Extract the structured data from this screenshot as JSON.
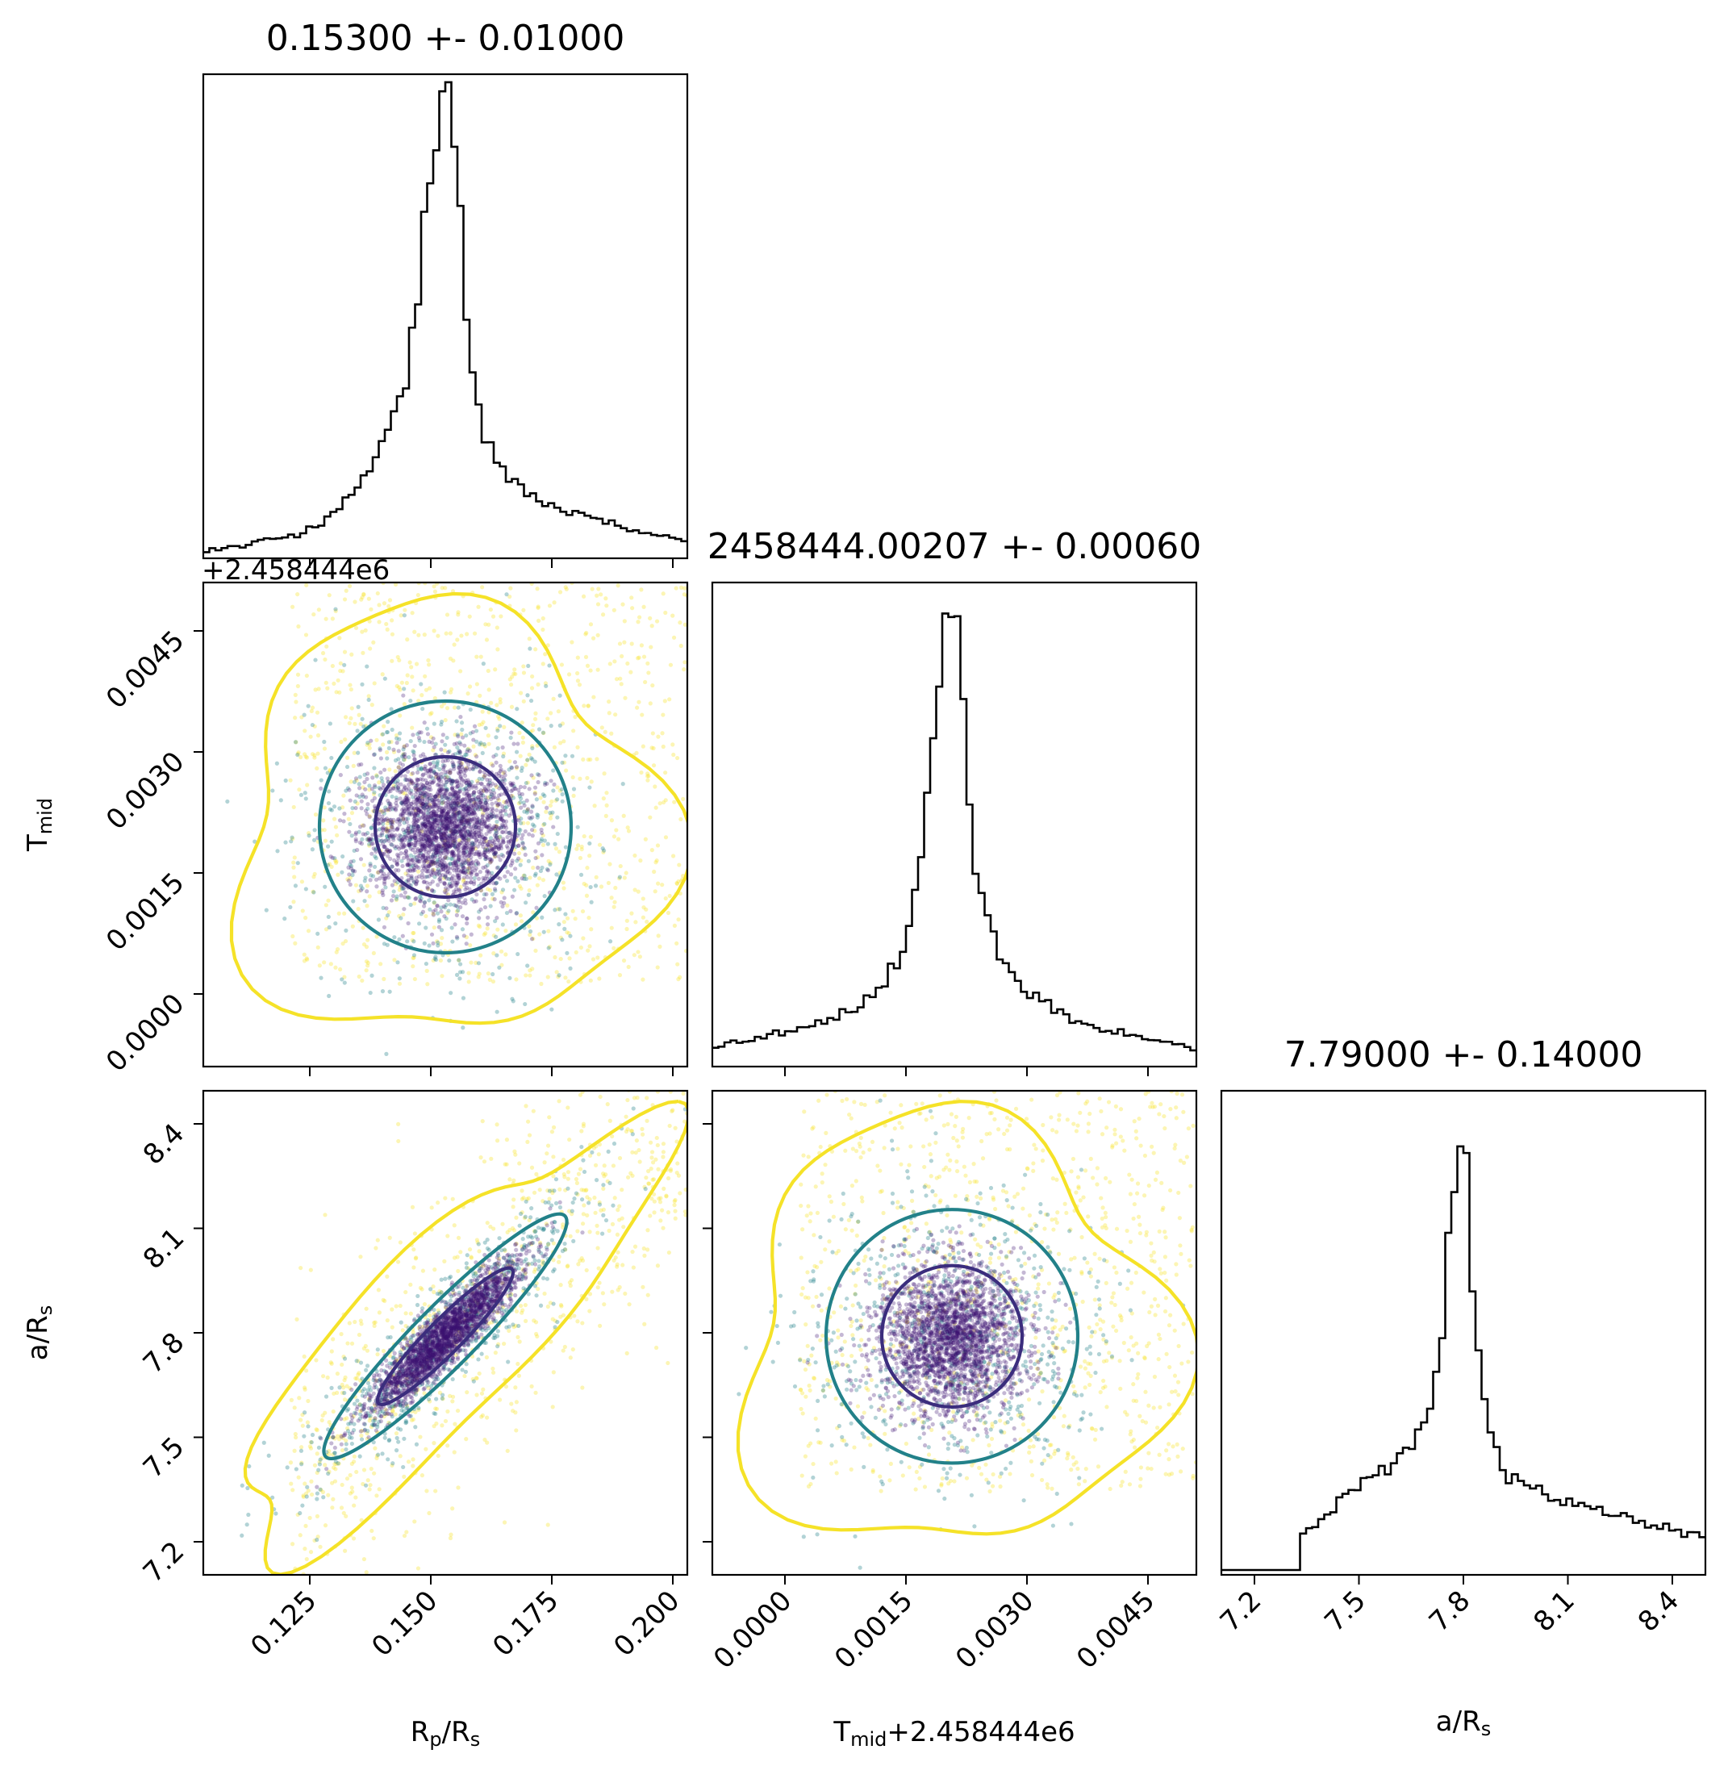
{
  "chart_data": {
    "type": "corner",
    "parameters": [
      {
        "key": "rprs",
        "label_main": "R",
        "label_sub": "p",
        "label_rest": "/R",
        "label_sub2": "s",
        "range": [
          0.103,
          0.203
        ],
        "ticks": [
          0.125,
          0.15,
          0.175,
          0.2
        ],
        "tick_labels": [
          "0.125",
          "0.150",
          "0.175",
          "0.200"
        ],
        "title": "0.15300 +- 0.01000",
        "center": 0.153,
        "sigma": 0.01
      },
      {
        "key": "tmid",
        "label_main": "T",
        "label_sub": "mid",
        "label_rest": "",
        "label_sub2": "",
        "offset_text": "+2.458444e6",
        "range": [
          -0.0009,
          0.0051
        ],
        "ticks": [
          0.0,
          0.0015,
          0.003,
          0.0045
        ],
        "tick_labels": [
          "0.0000",
          "0.0015",
          "0.0030",
          "0.0045"
        ],
        "title": "2458444.00207 +- 0.00060",
        "center": 0.00207,
        "sigma": 0.0006
      },
      {
        "key": "ars",
        "label_main": "a/R",
        "label_sub": "s",
        "label_rest": "",
        "label_sub2": "",
        "range": [
          7.105,
          8.495
        ],
        "ticks": [
          7.2,
          7.5,
          7.8,
          8.1,
          8.4
        ],
        "tick_labels": [
          "7.2",
          "7.5",
          "7.8",
          "8.1",
          "8.4"
        ],
        "title": "7.79000 +- 0.14000",
        "center": 7.79,
        "sigma": 0.14
      }
    ],
    "histograms": {
      "rprs": [
        [
          0.103,
          0.009
        ],
        [
          0.108,
          0.012
        ],
        [
          0.113,
          0.02
        ],
        [
          0.118,
          0.035
        ],
        [
          0.123,
          0.045
        ],
        [
          0.128,
          0.07
        ],
        [
          0.133,
          0.12
        ],
        [
          0.138,
          0.2
        ],
        [
          0.142,
          0.3
        ],
        [
          0.145,
          0.38
        ],
        [
          0.148,
          0.66
        ],
        [
          0.15,
          0.84
        ],
        [
          0.152,
          0.98
        ],
        [
          0.154,
          1.0
        ],
        [
          0.156,
          0.78
        ],
        [
          0.158,
          0.42
        ],
        [
          0.161,
          0.27
        ],
        [
          0.164,
          0.2
        ],
        [
          0.168,
          0.15
        ],
        [
          0.172,
          0.12
        ],
        [
          0.176,
          0.1
        ],
        [
          0.18,
          0.09
        ],
        [
          0.186,
          0.07
        ],
        [
          0.192,
          0.05
        ],
        [
          0.198,
          0.04
        ],
        [
          0.203,
          0.03
        ]
      ],
      "tmid": [
        [
          -0.0009,
          0.035
        ],
        [
          -0.0005,
          0.05
        ],
        [
          0.0,
          0.07
        ],
        [
          0.0005,
          0.09
        ],
        [
          0.0009,
          0.12
        ],
        [
          0.0012,
          0.17
        ],
        [
          0.0015,
          0.25
        ],
        [
          0.0017,
          0.45
        ],
        [
          0.0019,
          0.8
        ],
        [
          0.002,
          0.97
        ],
        [
          0.0021,
          1.0
        ],
        [
          0.0022,
          0.84
        ],
        [
          0.0023,
          0.5
        ],
        [
          0.0025,
          0.33
        ],
        [
          0.0027,
          0.22
        ],
        [
          0.003,
          0.16
        ],
        [
          0.0034,
          0.11
        ],
        [
          0.0038,
          0.08
        ],
        [
          0.0043,
          0.06
        ],
        [
          0.0048,
          0.04
        ],
        [
          0.0051,
          0.03
        ]
      ],
      "ars": [
        [
          7.105,
          0.0
        ],
        [
          7.33,
          0.0
        ],
        [
          7.34,
          0.08
        ],
        [
          7.4,
          0.12
        ],
        [
          7.48,
          0.17
        ],
        [
          7.56,
          0.22
        ],
        [
          7.64,
          0.27
        ],
        [
          7.7,
          0.34
        ],
        [
          7.74,
          0.5
        ],
        [
          7.76,
          0.74
        ],
        [
          7.78,
          0.95
        ],
        [
          7.8,
          1.0
        ],
        [
          7.82,
          0.75
        ],
        [
          7.84,
          0.48
        ],
        [
          7.87,
          0.3
        ],
        [
          7.92,
          0.22
        ],
        [
          8.0,
          0.18
        ],
        [
          8.1,
          0.15
        ],
        [
          8.2,
          0.13
        ],
        [
          8.3,
          0.11
        ],
        [
          8.4,
          0.09
        ],
        [
          8.495,
          0.07
        ]
      ]
    },
    "pairs": [
      {
        "x": "rprs",
        "y": "tmid",
        "correlation": 0.0
      },
      {
        "x": "rprs",
        "y": "ars",
        "correlation": 0.92
      },
      {
        "x": "tmid",
        "y": "ars",
        "correlation": 0.0
      }
    ],
    "contour_levels": [
      "inner",
      "middle",
      "outer"
    ],
    "colors": {
      "inner": "#3b2d7d",
      "middle": "#228189",
      "outer": "#f5e228",
      "dense": "#3b0f6f",
      "line": "#000000"
    }
  }
}
